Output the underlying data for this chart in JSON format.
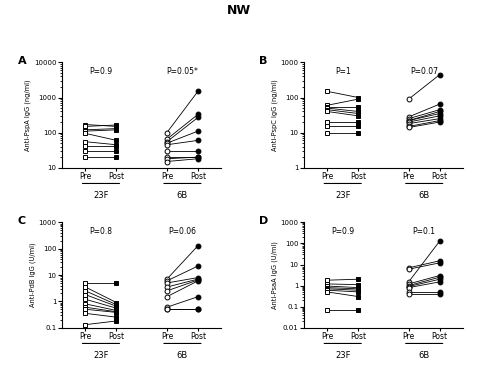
{
  "title": "NW",
  "panels": [
    {
      "label": "A",
      "ylabel": "Anti-PspA IgG (ng/ml)",
      "ylim_log": [
        10,
        10000
      ],
      "yticks": [
        10,
        100,
        1000,
        10000
      ],
      "yticklabels": [
        "10",
        "100",
        "1000",
        "10000"
      ],
      "p_left": "P=0.9",
      "p_right": "P=0.05*",
      "grp_left": "23F",
      "grp_right": "6B",
      "series_left": [
        {
          "pre": 170,
          "post": 150
        },
        {
          "pre": 150,
          "post": 165
        },
        {
          "pre": 120,
          "post": 130
        },
        {
          "pre": 110,
          "post": 120
        },
        {
          "pre": 95,
          "post": 60
        },
        {
          "pre": 55,
          "post": 45
        },
        {
          "pre": 42,
          "post": 42
        },
        {
          "pre": 30,
          "post": 30
        },
        {
          "pre": 20,
          "post": 20
        }
      ],
      "series_right": [
        {
          "pre": 100,
          "post": 1500
        },
        {
          "pre": 65,
          "post": 330
        },
        {
          "pre": 55,
          "post": 270
        },
        {
          "pre": 50,
          "post": 110
        },
        {
          "pre": 45,
          "post": 60
        },
        {
          "pre": 30,
          "post": 30
        },
        {
          "pre": 20,
          "post": 20
        },
        {
          "pre": 18,
          "post": 20
        },
        {
          "pre": 15,
          "post": 18
        }
      ],
      "marker_left": "s",
      "marker_right": "o"
    },
    {
      "label": "B",
      "ylabel": "Anti-PspC IgG (ng/ml)",
      "ylim_log": [
        1,
        1000
      ],
      "yticks": [
        1,
        10,
        100,
        1000
      ],
      "yticklabels": [
        "1",
        "10",
        "100",
        "1000"
      ],
      "p_left": "P=1",
      "p_right": "P=0.07",
      "grp_left": "23F",
      "grp_right": "6B",
      "series_left": [
        {
          "pre": 150,
          "post": 100
        },
        {
          "pre": 60,
          "post": 90
        },
        {
          "pre": 55,
          "post": 55
        },
        {
          "pre": 50,
          "post": 40
        },
        {
          "pre": 45,
          "post": 35
        },
        {
          "pre": 40,
          "post": 30
        },
        {
          "pre": 20,
          "post": 20
        },
        {
          "pre": 15,
          "post": 15
        },
        {
          "pre": 10,
          "post": 10
        }
      ],
      "series_right": [
        {
          "pre": 90,
          "post": 450
        },
        {
          "pre": 28,
          "post": 65
        },
        {
          "pre": 25,
          "post": 45
        },
        {
          "pre": 22,
          "post": 40
        },
        {
          "pre": 22,
          "post": 35
        },
        {
          "pre": 20,
          "post": 30
        },
        {
          "pre": 18,
          "post": 25
        },
        {
          "pre": 15,
          "post": 22
        },
        {
          "pre": 14,
          "post": 20
        }
      ],
      "marker_left": "s",
      "marker_right": "o"
    },
    {
      "label": "C",
      "ylabel": "Anti-PdB IgG (U/ml)",
      "ylim_log": [
        0.1,
        1000
      ],
      "yticks": [
        0.1,
        1,
        10,
        100,
        1000
      ],
      "yticklabels": [
        "0.1",
        "1",
        "10",
        "100",
        "1000"
      ],
      "p_left": "P=0.8",
      "p_right": "P=0.06",
      "grp_left": "23F",
      "grp_right": "6B",
      "series_left": [
        {
          "pre": 5.0,
          "post": 5.0
        },
        {
          "pre": 3.5,
          "post": 0.9
        },
        {
          "pre": 2.5,
          "post": 0.75
        },
        {
          "pre": 1.8,
          "post": 0.65
        },
        {
          "pre": 1.2,
          "post": 0.55
        },
        {
          "pre": 0.8,
          "post": 0.45
        },
        {
          "pre": 0.6,
          "post": 0.4
        },
        {
          "pre": 0.5,
          "post": 0.38
        },
        {
          "pre": 0.35,
          "post": 0.25
        },
        {
          "pre": 0.13,
          "post": 0.18
        }
      ],
      "series_right": [
        {
          "pre": 7.0,
          "post": 130
        },
        {
          "pre": 6.0,
          "post": 22
        },
        {
          "pre": 5.0,
          "post": 8.0
        },
        {
          "pre": 3.5,
          "post": 7.0
        },
        {
          "pre": 2.5,
          "post": 6.5
        },
        {
          "pre": 1.5,
          "post": 6.0
        },
        {
          "pre": 0.6,
          "post": 1.5
        },
        {
          "pre": 0.5,
          "post": 0.5
        },
        {
          "pre": 0.5,
          "post": 0.5
        }
      ],
      "marker_left": "s",
      "marker_right": "o"
    },
    {
      "label": "D",
      "ylabel": "Anti-PsaA IgG (U/ml)",
      "ylim_log": [
        0.01,
        1000
      ],
      "yticks": [
        0.01,
        0.1,
        1,
        10,
        100,
        1000
      ],
      "yticklabels": [
        "0.01",
        "0.1",
        "1",
        "10",
        "100",
        "1000"
      ],
      "p_left": "P=0.9",
      "p_right": "P=0.1",
      "grp_left": "23F",
      "grp_right": "6B",
      "series_left": [
        {
          "pre": 1.8,
          "post": 2.0
        },
        {
          "pre": 1.2,
          "post": 1.1
        },
        {
          "pre": 0.95,
          "post": 0.8
        },
        {
          "pre": 0.8,
          "post": 0.7
        },
        {
          "pre": 0.7,
          "post": 0.6
        },
        {
          "pre": 0.6,
          "post": 0.5
        },
        {
          "pre": 0.5,
          "post": 0.3
        },
        {
          "pre": 0.07,
          "post": 0.07
        }
      ],
      "series_right": [
        {
          "pre": 1.5,
          "post": 130
        },
        {
          "pre": 7.0,
          "post": 15
        },
        {
          "pre": 6.0,
          "post": 12
        },
        {
          "pre": 1.2,
          "post": 3.0
        },
        {
          "pre": 1.0,
          "post": 2.5
        },
        {
          "pre": 0.9,
          "post": 2.0
        },
        {
          "pre": 0.8,
          "post": 1.5
        },
        {
          "pre": 0.5,
          "post": 0.5
        },
        {
          "pre": 0.4,
          "post": 0.4
        }
      ],
      "marker_left": "s",
      "marker_right": "o"
    }
  ]
}
